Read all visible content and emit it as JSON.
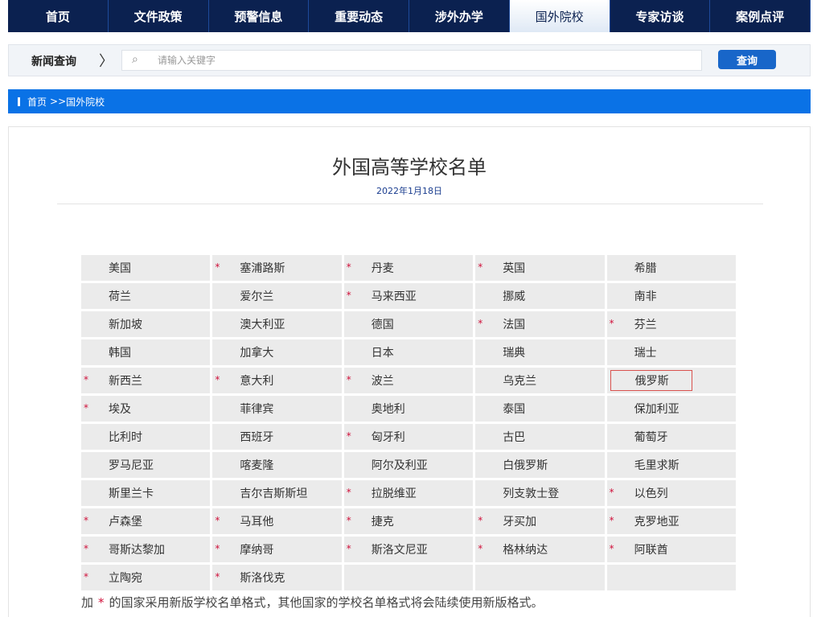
{
  "nav": {
    "tabs": [
      "首页",
      "文件政策",
      "预警信息",
      "重要动态",
      "涉外办学",
      "国外院校",
      "专家访谈",
      "案例点评"
    ],
    "active": "国外院校"
  },
  "search": {
    "label": "新闻查询",
    "placeholder": "请输入关键字",
    "value": "",
    "button": "查询",
    "icon": "search-icon"
  },
  "breadcrumb": {
    "home": "首页",
    "sep": ">>",
    "current": "国外院校"
  },
  "article": {
    "title": "外国高等学校名单",
    "date": "2022年1月18日"
  },
  "colors": {
    "nav": "#0b2150",
    "accent": "#0a72e6",
    "star": "#d0103a"
  },
  "countries": [
    [
      {
        "n": "美国"
      },
      {
        "n": "塞浦路斯",
        "s": true
      },
      {
        "n": "丹麦",
        "s": true
      },
      {
        "n": "英国",
        "s": true
      },
      {
        "n": "希腊"
      }
    ],
    [
      {
        "n": "荷兰"
      },
      {
        "n": "爱尔兰"
      },
      {
        "n": "马来西亚",
        "s": true
      },
      {
        "n": "挪威"
      },
      {
        "n": "南非"
      }
    ],
    [
      {
        "n": "新加坡"
      },
      {
        "n": "澳大利亚"
      },
      {
        "n": "德国"
      },
      {
        "n": "法国",
        "s": true
      },
      {
        "n": "芬兰",
        "s": true
      }
    ],
    [
      {
        "n": "韩国"
      },
      {
        "n": "加拿大"
      },
      {
        "n": "日本"
      },
      {
        "n": "瑞典"
      },
      {
        "n": "瑞士"
      }
    ],
    [
      {
        "n": "新西兰",
        "s": true
      },
      {
        "n": "意大利",
        "s": true
      },
      {
        "n": "波兰",
        "s": true
      },
      {
        "n": "乌克兰"
      },
      {
        "n": "俄罗斯",
        "h": true
      }
    ],
    [
      {
        "n": "埃及",
        "s": true
      },
      {
        "n": "菲律宾"
      },
      {
        "n": "奥地利"
      },
      {
        "n": "泰国"
      },
      {
        "n": "保加利亚"
      }
    ],
    [
      {
        "n": "比利时"
      },
      {
        "n": "西班牙"
      },
      {
        "n": "匈牙利",
        "s": true
      },
      {
        "n": "古巴"
      },
      {
        "n": "葡萄牙"
      }
    ],
    [
      {
        "n": "罗马尼亚"
      },
      {
        "n": "喀麦隆"
      },
      {
        "n": "阿尔及利亚"
      },
      {
        "n": "白俄罗斯"
      },
      {
        "n": "毛里求斯"
      }
    ],
    [
      {
        "n": "斯里兰卡"
      },
      {
        "n": "吉尔吉斯斯坦"
      },
      {
        "n": "拉脱维亚",
        "s": true
      },
      {
        "n": "列支敦士登"
      },
      {
        "n": "以色列",
        "s": true
      }
    ],
    [
      {
        "n": "卢森堡",
        "s": true
      },
      {
        "n": "马耳他",
        "s": true
      },
      {
        "n": "捷克",
        "s": true
      },
      {
        "n": "牙买加",
        "s": true
      },
      {
        "n": "克罗地亚",
        "s": true
      }
    ],
    [
      {
        "n": "哥斯达黎加",
        "s": true
      },
      {
        "n": "摩纳哥",
        "s": true
      },
      {
        "n": "斯洛文尼亚",
        "s": true
      },
      {
        "n": "格林纳达",
        "s": true
      },
      {
        "n": "阿联酋",
        "s": true
      }
    ],
    [
      {
        "n": "立陶宛",
        "s": true
      },
      {
        "n": "斯洛伐克",
        "s": true
      },
      {
        "n": ""
      },
      {
        "n": ""
      },
      {
        "n": ""
      }
    ]
  ],
  "note": {
    "pre": "加",
    "star": "*",
    "text": "的国家采用新版学校名单格式，其他国家的学校名单格式将会陆续使用新版格式。"
  }
}
